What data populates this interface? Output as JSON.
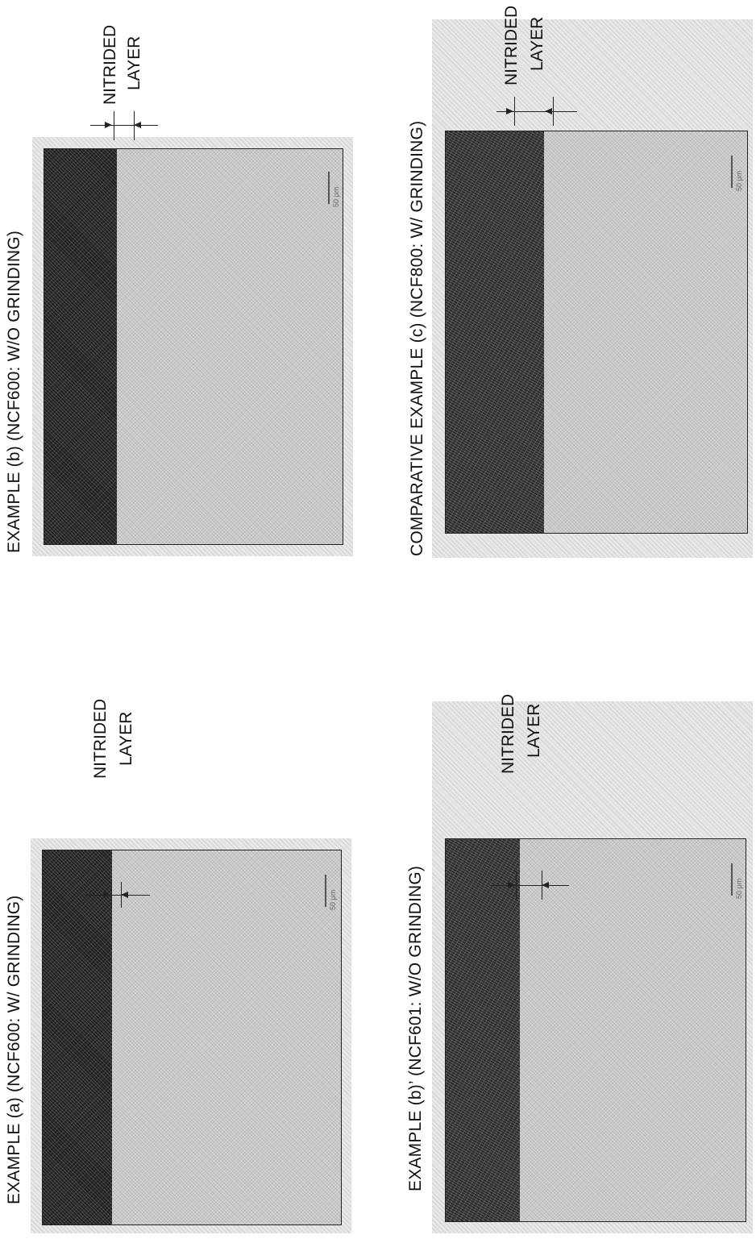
{
  "panels": {
    "a": {
      "caption": "EXAMPLE (a) (NCF600: W/ GRINDING)",
      "label_line1": "NITRIDED",
      "label_line2": "LAYER",
      "scale_text": "50 μm"
    },
    "b": {
      "caption": "EXAMPLE (b) (NCF600: W/O GRINDING)",
      "label_line1": "NITRIDED",
      "label_line2": "LAYER",
      "scale_text": "50 μm"
    },
    "b_prime": {
      "caption": "EXAMPLE (b)’ (NCF601: W/O GRINDING)",
      "label_line1": "NITRIDED",
      "label_line2": "LAYER",
      "scale_text": "50 μm"
    },
    "c": {
      "caption": "COMPARATIVE EXAMPLE (c) (NCF800: W/ GRINDING)",
      "label_line1": "NITRIDED",
      "label_line2": "LAYER",
      "scale_text": "50 μm"
    }
  }
}
